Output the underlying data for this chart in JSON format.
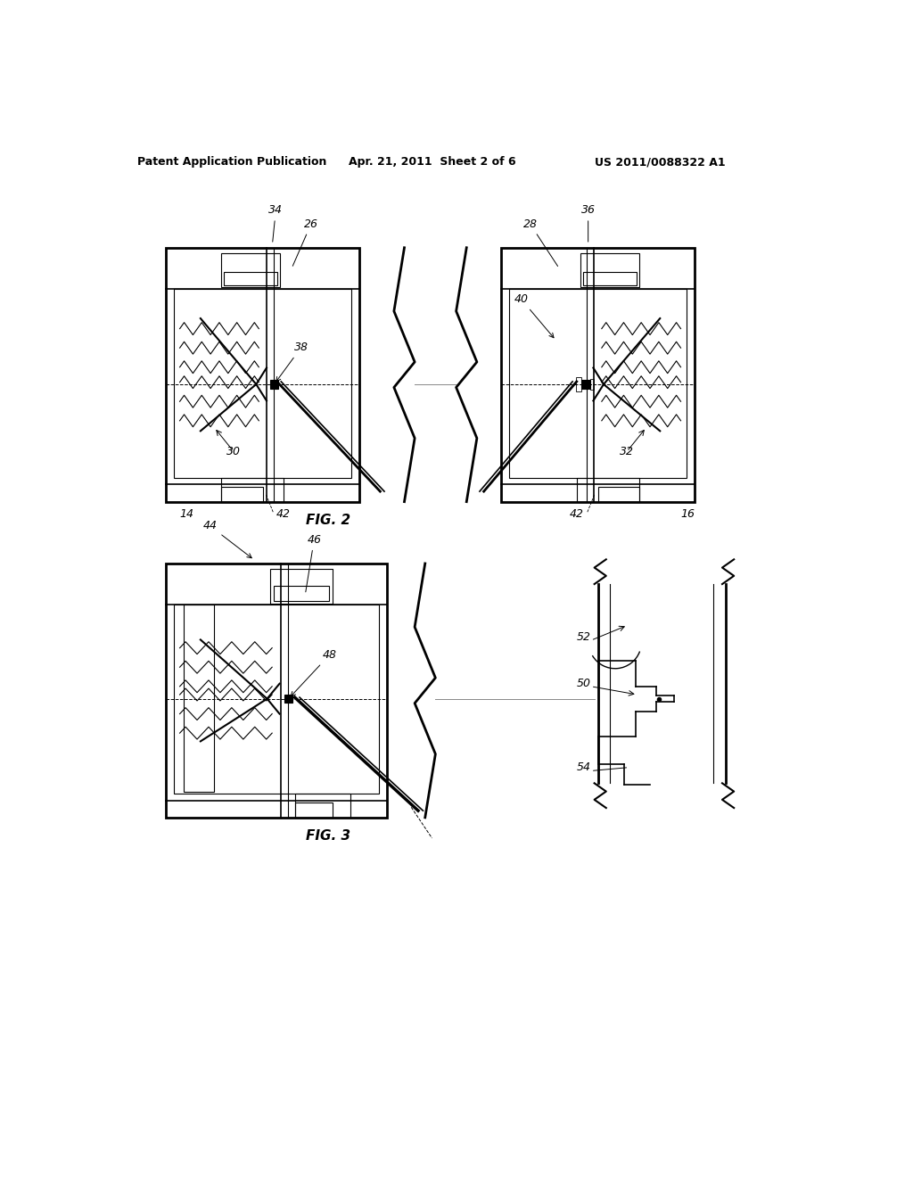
{
  "bg_color": "#ffffff",
  "header_left": "Patent Application Publication",
  "header_mid": "Apr. 21, 2011  Sheet 2 of 6",
  "header_right": "US 2011/0088322 A1",
  "fig2_label": "FIG. 2",
  "fig3_label": "FIG. 3",
  "line_color": "#000000",
  "gray_line": "#888888"
}
